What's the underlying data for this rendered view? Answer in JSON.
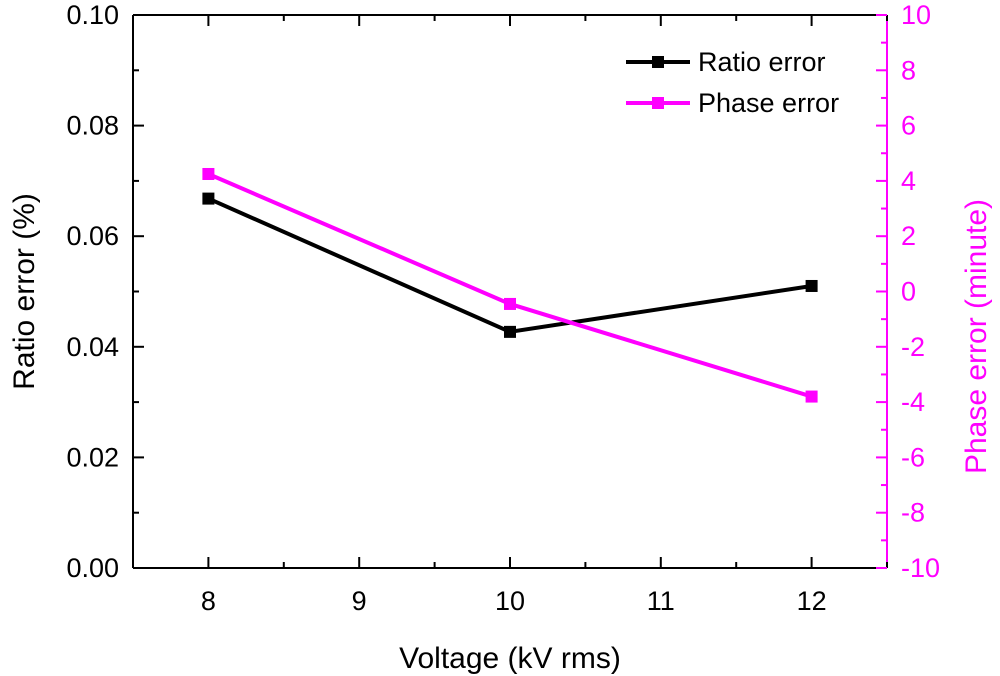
{
  "chart_data": {
    "type": "line",
    "title": "",
    "xlabel": "Voltage (kV rms)",
    "x": [
      8,
      10,
      12
    ],
    "xlim": [
      7.5,
      12.5
    ],
    "xticks": [
      8,
      9,
      10,
      11,
      12
    ],
    "xtick_labels": [
      "8",
      "9",
      "10",
      "11",
      "12"
    ],
    "y_left": {
      "label": "Ratio error (%)",
      "lim": [
        0,
        0.1
      ],
      "ticks": [
        0,
        0.02,
        0.04,
        0.06,
        0.08,
        0.1
      ],
      "tick_labels": [
        "0.00",
        "0.02",
        "0.04",
        "0.06",
        "0.08",
        "0.10"
      ],
      "color": "#000000"
    },
    "y_right": {
      "label": "Phase error (minute)",
      "lim": [
        -10,
        10
      ],
      "ticks": [
        -10,
        -8,
        -6,
        -4,
        -2,
        0,
        2,
        4,
        6,
        8,
        10
      ],
      "tick_labels": [
        "-10",
        "-8",
        "-6",
        "-4",
        "-2",
        "0",
        "2",
        "4",
        "6",
        "8",
        "10"
      ],
      "color": "#ff00ff"
    },
    "series": [
      {
        "name": "Ratio error",
        "axis": "left",
        "color": "#000000",
        "marker": "square",
        "values": [
          0.0668,
          0.0427,
          0.051
        ]
      },
      {
        "name": "Phase error",
        "axis": "right",
        "color": "#ff00ff",
        "marker": "square",
        "values": [
          4.25,
          -0.45,
          -3.8
        ]
      }
    ],
    "legend_position": "top-right",
    "grid": false
  }
}
